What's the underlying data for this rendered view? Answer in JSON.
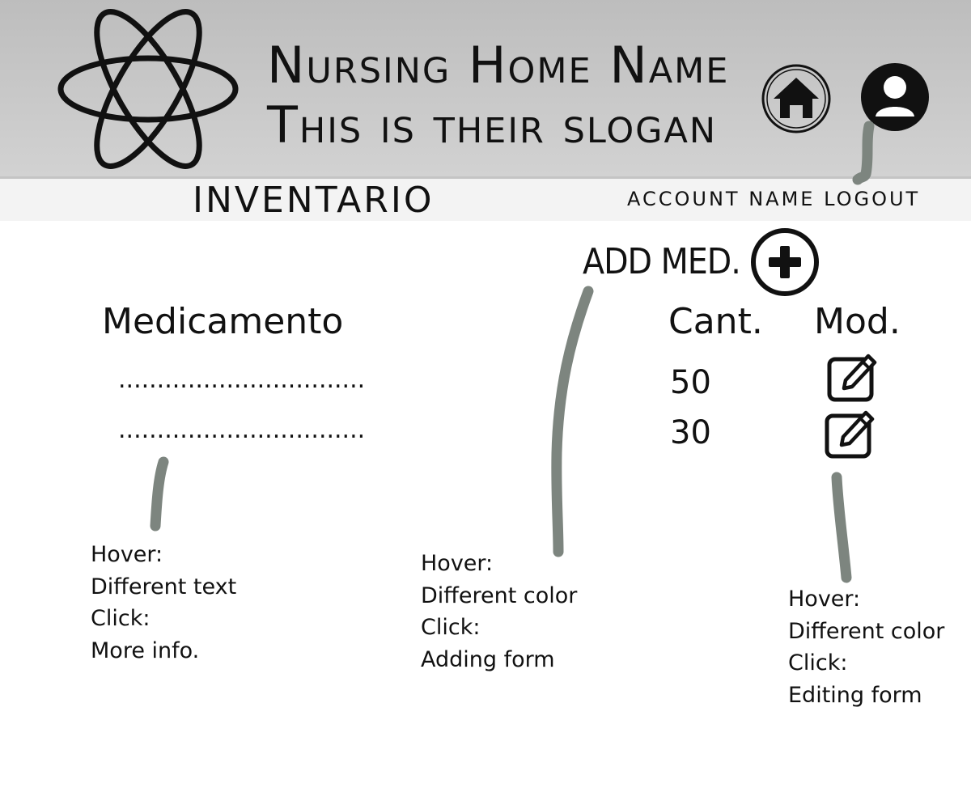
{
  "header": {
    "title_line1": "Nursing Home Name",
    "title_line2": "This is their slogan",
    "logo_icon": "atom-logo-icon",
    "home_icon": "home-icon",
    "user_icon": "user-account-icon"
  },
  "subbar": {
    "page_title": "INVENTARIO",
    "account_name": "ACCOUNT NAME",
    "logout_label": "LOGOUT"
  },
  "actions": {
    "add_med_label": "ADD MED.",
    "add_icon": "plus-circle-icon"
  },
  "table": {
    "headers": {
      "medicamento": "Medicamento",
      "cantidad": "Cant.",
      "modificar": "Mod."
    },
    "rows": [
      {
        "name": "................................",
        "qty": "50",
        "edit_icon": "edit-icon"
      },
      {
        "name": "................................",
        "qty": "30",
        "edit_icon": "edit-icon"
      }
    ]
  },
  "annotations": {
    "medicamento_note": [
      "Hover:",
      "Different text",
      "Click:",
      "More info."
    ],
    "add_med_note": [
      "Hover:",
      "Different color",
      "Click:",
      "Adding form"
    ],
    "edit_note": [
      "Hover:",
      "Different color",
      "Click:",
      "Editing form"
    ]
  },
  "colors": {
    "header_bg": "#c8c8c8",
    "subbar_bg": "#f3f3f3",
    "annotation_stroke": "#7d857f",
    "ink": "#111111"
  }
}
